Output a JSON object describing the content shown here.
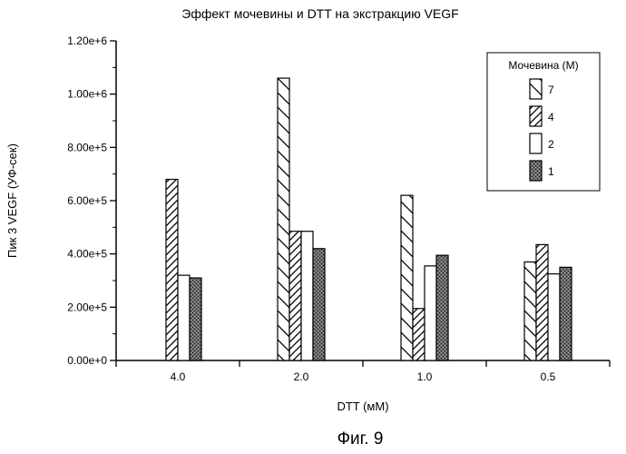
{
  "chart_data": {
    "type": "bar",
    "title": "Эффект мочевины и DTT на экстракцию VEGF",
    "xlabel": "DTT (мМ)",
    "ylabel": "Пик 3 VEGF (УФ-сек)",
    "categories": [
      "4.0",
      "2.0",
      "1.0",
      "0.5"
    ],
    "ylim": [
      0,
      1200000
    ],
    "ytick_values": [
      0,
      200000,
      400000,
      600000,
      800000,
      1000000,
      1200000
    ],
    "ytick_labels": [
      "0.00e+0",
      "2.00e+5",
      "4.00e+5",
      "6.00e+5",
      "8.00e+5",
      "1.00e+6",
      "1.20e+6"
    ],
    "grid": false,
    "legend_title": "Мочевина (М)",
    "legend_position": "top-right",
    "series": [
      {
        "name": "7",
        "pattern": "backslash-hatch",
        "values": [
          null,
          1060000,
          620000,
          370000
        ]
      },
      {
        "name": "4",
        "pattern": "slash-hatch",
        "values": [
          680000,
          485000,
          195000,
          435000
        ]
      },
      {
        "name": "2",
        "pattern": "white",
        "values": [
          320000,
          485000,
          355000,
          325000
        ]
      },
      {
        "name": "1",
        "pattern": "stipple",
        "values": [
          310000,
          420000,
          395000,
          350000
        ]
      }
    ]
  },
  "caption": "Фиг. 9"
}
